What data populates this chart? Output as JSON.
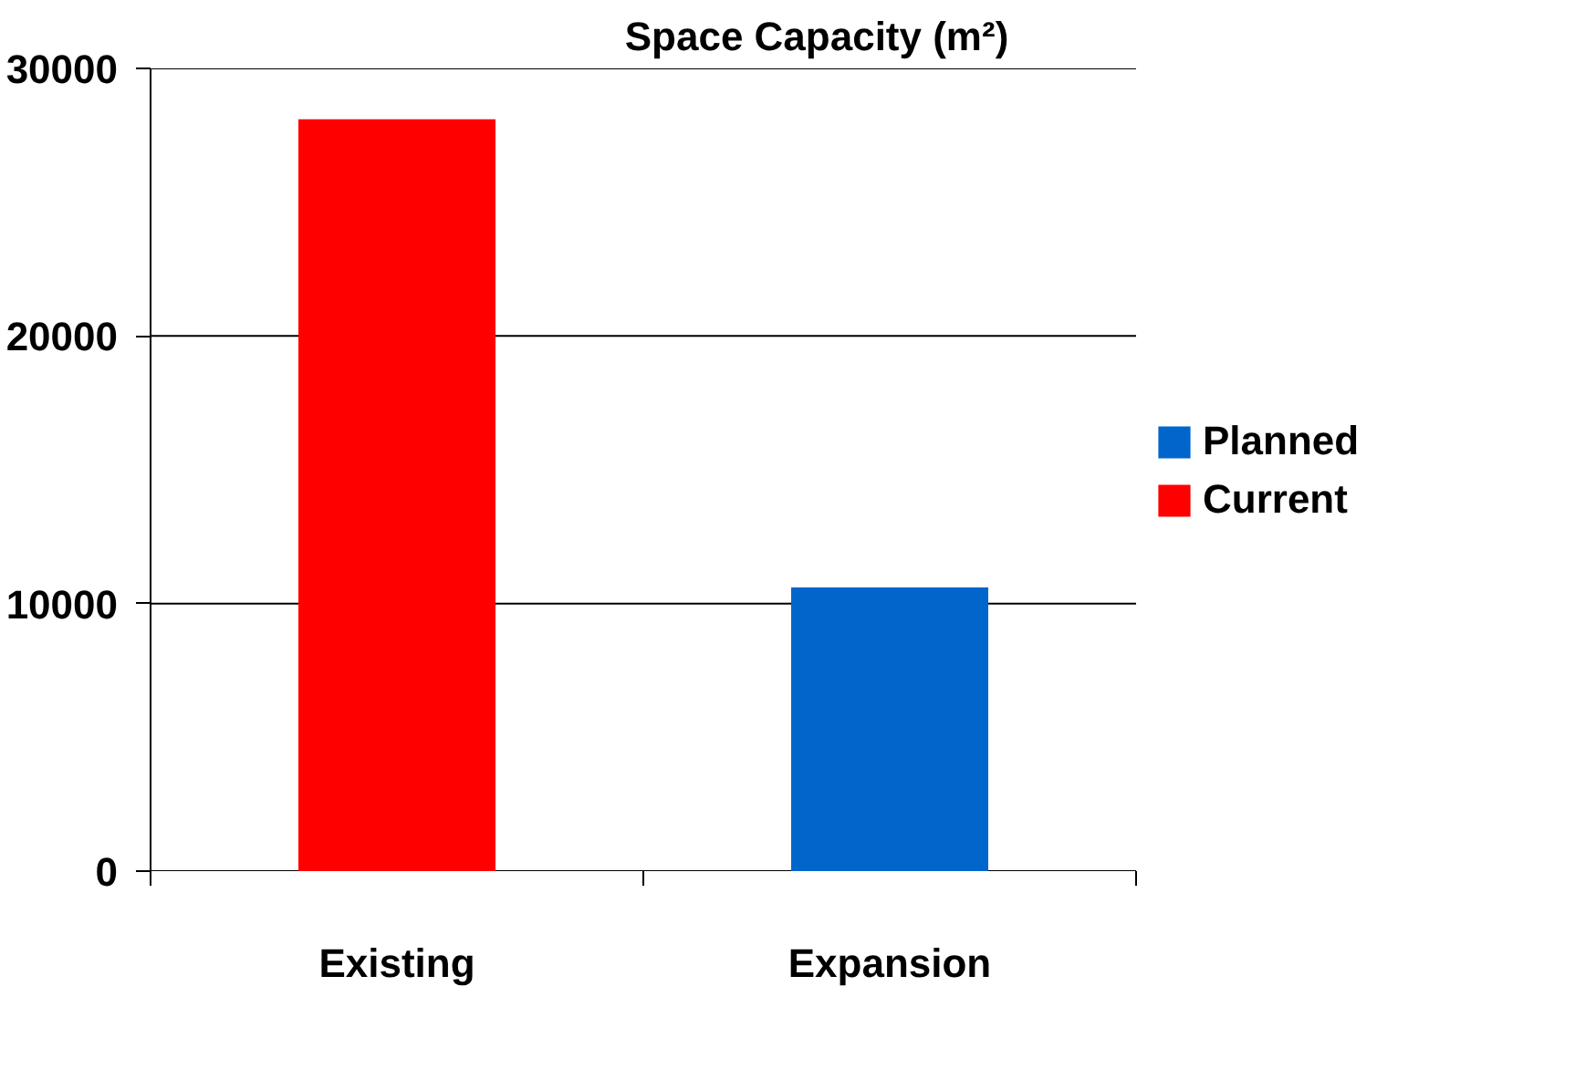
{
  "chart_data": {
    "type": "bar",
    "title": "Space Capacity (m²)",
    "categories": [
      "Existing",
      "Expansion"
    ],
    "stacked": true,
    "series": [
      {
        "name": "Current",
        "color": "#ff0000",
        "values": [
          28100,
          null
        ]
      },
      {
        "name": "Planned",
        "color": "#0066cc",
        "values": [
          null,
          10600
        ]
      }
    ],
    "ylim": [
      0,
      30000
    ],
    "yticks": [
      0,
      10000,
      20000,
      30000
    ],
    "grid": "y",
    "legend": "right"
  }
}
